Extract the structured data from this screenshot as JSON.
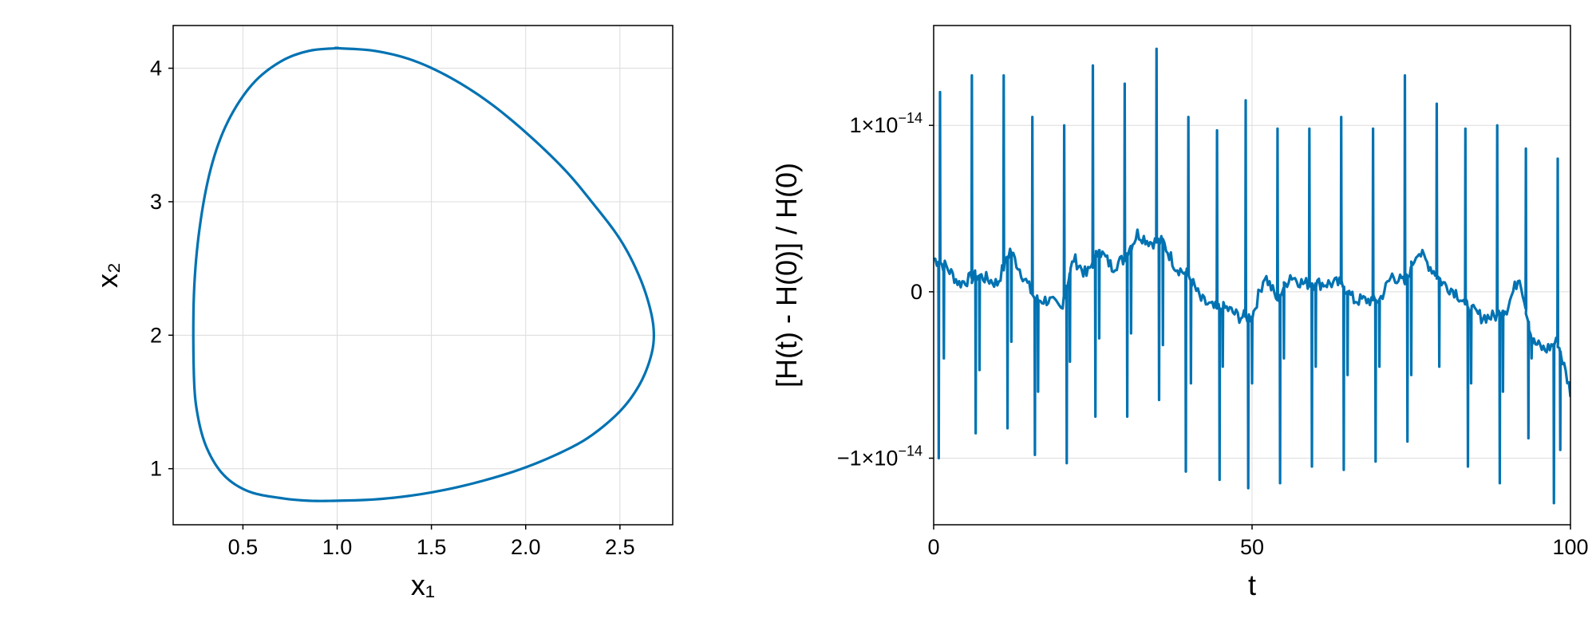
{
  "colors": {
    "line": "#0072b2",
    "grid": "#dcdcdc",
    "frame": "#000000"
  },
  "chart_data": [
    {
      "type": "line",
      "xlabel": "x₁",
      "ylabel": "x₂",
      "xlim": [
        0.13,
        2.78
      ],
      "ylim": [
        0.58,
        4.32
      ],
      "grid": true,
      "xticks": [
        {
          "v": 0.5,
          "label": "0.5"
        },
        {
          "v": 1.0,
          "label": "1.0"
        },
        {
          "v": 1.5,
          "label": "1.5"
        },
        {
          "v": 2.0,
          "label": "2.0"
        },
        {
          "v": 2.5,
          "label": "2.5"
        }
      ],
      "yticks": [
        {
          "v": 1,
          "label": "1"
        },
        {
          "v": 2,
          "label": "2"
        },
        {
          "v": 3,
          "label": "3"
        },
        {
          "v": 4,
          "label": "4"
        }
      ],
      "series": [
        {
          "x": [
            1.0,
            0.85,
            0.7,
            0.55,
            0.42,
            0.33,
            0.27,
            0.24,
            0.24,
            0.26,
            0.31,
            0.4,
            0.53,
            0.7,
            0.85,
            1.0,
            1.2,
            1.4,
            1.6,
            1.8,
            2.0,
            2.2,
            2.35,
            2.5,
            2.6,
            2.66,
            2.68,
            2.66,
            2.6,
            2.5,
            2.35,
            2.2,
            2.0,
            1.8,
            1.6,
            1.4,
            1.2,
            1.0
          ],
          "y": [
            4.15,
            4.13,
            4.05,
            3.88,
            3.6,
            3.25,
            2.8,
            2.3,
            1.7,
            1.4,
            1.15,
            0.95,
            0.83,
            0.78,
            0.76,
            0.76,
            0.77,
            0.8,
            0.85,
            0.92,
            1.01,
            1.13,
            1.25,
            1.43,
            1.62,
            1.82,
            2.0,
            2.2,
            2.45,
            2.72,
            3.0,
            3.25,
            3.52,
            3.75,
            3.93,
            4.06,
            4.13,
            4.15
          ]
        }
      ]
    },
    {
      "type": "line",
      "xlabel": "t",
      "ylabel": "[H(t) - H(0)] / H(0)",
      "xlim": [
        0,
        100
      ],
      "ylim": [
        -1.4e-14,
        1.6e-14
      ],
      "grid": true,
      "xticks": [
        {
          "v": 0,
          "label": "0"
        },
        {
          "v": 50,
          "label": "50"
        },
        {
          "v": 100,
          "label": "100"
        }
      ],
      "yticks": [
        {
          "v": -1e-14,
          "mant": "−1×10",
          "exp": "−14"
        },
        {
          "v": 0,
          "mant": "0",
          "exp": ""
        },
        {
          "v": 1e-14,
          "mant": "1×10",
          "exp": "−14"
        }
      ],
      "series": [
        {
          "spikes_up": [
            [
              1.0,
              1.2e-14
            ],
            [
              6.0,
              1.3e-14
            ],
            [
              11.0,
              1.3e-14
            ],
            [
              15.5,
              1.05e-14
            ],
            [
              20.5,
              1e-14
            ],
            [
              25.0,
              1.36e-14
            ],
            [
              30.0,
              1.25e-14
            ],
            [
              35.0,
              1.46e-14
            ],
            [
              40.0,
              1.05e-14
            ],
            [
              44.5,
              9.7e-15
            ],
            [
              49.0,
              1.15e-14
            ],
            [
              54.0,
              9.8e-15
            ],
            [
              59.0,
              9.8e-15
            ],
            [
              64.0,
              1.05e-14
            ],
            [
              69.0,
              9.8e-15
            ],
            [
              74.0,
              1.3e-14
            ],
            [
              79.0,
              1.13e-14
            ],
            [
              83.5,
              9.8e-15
            ],
            [
              88.5,
              1e-14
            ],
            [
              93.0,
              8.6e-15
            ],
            [
              98.0,
              8e-15
            ]
          ],
          "spikes_down": [
            [
              0.8,
              -1e-14
            ],
            [
              1.6,
              -4e-15
            ],
            [
              6.6,
              -8.5e-15
            ],
            [
              7.2,
              -4.7e-15
            ],
            [
              11.6,
              -8.2e-15
            ],
            [
              12.2,
              -3e-15
            ],
            [
              15.9,
              -9.8e-15
            ],
            [
              16.4,
              -6e-15
            ],
            [
              20.9,
              -1.03e-14
            ],
            [
              21.4,
              -4.2e-15
            ],
            [
              25.4,
              -7.5e-15
            ],
            [
              26.0,
              -2.8e-15
            ],
            [
              30.4,
              -7.5e-15
            ],
            [
              31.0,
              -2.5e-15
            ],
            [
              35.4,
              -6.5e-15
            ],
            [
              36.0,
              -3.2e-15
            ],
            [
              39.6,
              -1.08e-14
            ],
            [
              40.4,
              -5.5e-15
            ],
            [
              44.9,
              -1.13e-14
            ],
            [
              45.4,
              -4.5e-15
            ],
            [
              49.4,
              -1.18e-14
            ],
            [
              50.0,
              -5.5e-15
            ],
            [
              54.4,
              -1.15e-14
            ],
            [
              55.0,
              -4e-15
            ],
            [
              59.4,
              -1.05e-14
            ],
            [
              60.0,
              -4.5e-15
            ],
            [
              64.4,
              -1.07e-14
            ],
            [
              65.0,
              -5e-15
            ],
            [
              69.4,
              -1.02e-14
            ],
            [
              70.0,
              -4.5e-15
            ],
            [
              74.4,
              -9e-15
            ],
            [
              75.0,
              -5e-15
            ],
            [
              79.4,
              -4.5e-15
            ],
            [
              83.9,
              -1.05e-14
            ],
            [
              84.4,
              -5.5e-15
            ],
            [
              88.9,
              -1.15e-14
            ],
            [
              89.4,
              -6e-15
            ],
            [
              93.4,
              -8.8e-15
            ],
            [
              93.9,
              -4e-15
            ],
            [
              97.4,
              -1.27e-14
            ],
            [
              98.4,
              -9.5e-15
            ]
          ],
          "baseline": [
            [
              0,
              2e-15
            ],
            [
              2,
              1.5e-15
            ],
            [
              4,
              5e-16
            ],
            [
              7,
              1e-15
            ],
            [
              10,
              5e-16
            ],
            [
              12,
              2.5e-15
            ],
            [
              14,
              1e-15
            ],
            [
              16,
              -5e-16
            ],
            [
              18,
              -5e-16
            ],
            [
              20,
              -1e-15
            ],
            [
              22,
              2e-15
            ],
            [
              24,
              1e-15
            ],
            [
              26,
              2.5e-15
            ],
            [
              28,
              1.5e-15
            ],
            [
              30,
              2e-15
            ],
            [
              32,
              3.5e-15
            ],
            [
              34,
              3e-15
            ],
            [
              36,
              3e-15
            ],
            [
              38,
              1.5e-15
            ],
            [
              40,
              1e-15
            ],
            [
              42,
              -5e-16
            ],
            [
              44,
              -1e-15
            ],
            [
              46,
              -1e-15
            ],
            [
              48,
              -1.5e-15
            ],
            [
              50,
              -1.5e-15
            ],
            [
              52,
              1e-15
            ],
            [
              54,
              -5e-16
            ],
            [
              56,
              1e-15
            ],
            [
              58,
              5e-16
            ],
            [
              60,
              5e-16
            ],
            [
              62,
              5e-16
            ],
            [
              64,
              5e-16
            ],
            [
              66,
              -5e-16
            ],
            [
              68,
              -5e-16
            ],
            [
              70,
              -5e-16
            ],
            [
              72,
              1e-15
            ],
            [
              74,
              5e-16
            ],
            [
              76,
              2.5e-15
            ],
            [
              78,
              1.5e-15
            ],
            [
              80,
              5e-16
            ],
            [
              82,
              0.0
            ],
            [
              84,
              -1e-15
            ],
            [
              86,
              -1.5e-15
            ],
            [
              88,
              -1.5e-15
            ],
            [
              90,
              -1e-15
            ],
            [
              92,
              1e-15
            ],
            [
              94,
              -3e-15
            ],
            [
              96,
              -3.5e-15
            ],
            [
              98,
              -3e-15
            ],
            [
              100,
              -6e-15
            ]
          ]
        }
      ]
    }
  ]
}
